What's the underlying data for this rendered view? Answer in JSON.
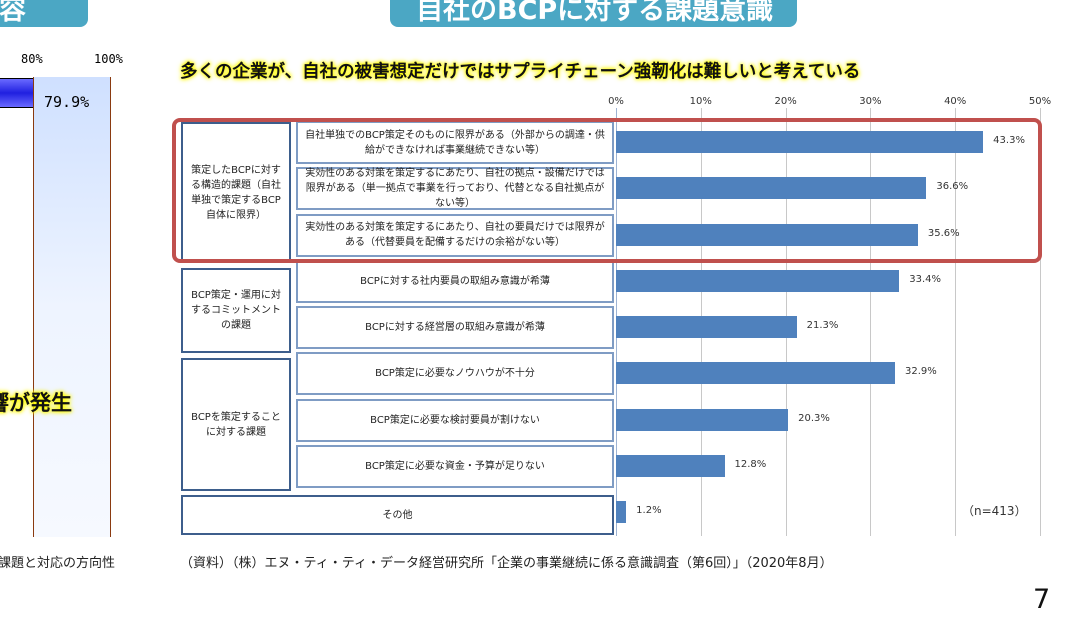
{
  "left_panel": {
    "header_fragment": "内容",
    "axis_ticks": [
      "80%",
      "100%"
    ],
    "value_label": "79.9%",
    "value": 79.9,
    "highlight_fragment": "響が発生",
    "footer_fragment": "課題と対応の方向性"
  },
  "header": {
    "title": "自社のBCPに対する課題意識"
  },
  "headline": "多くの企業が、自社の被害想定だけではサプライチェーン強靭化は難しいと考えている",
  "groups": [
    {
      "label": "策定したBCPに対する構造的課題（自社単独で策定するBCP自体に限界）"
    },
    {
      "label": "BCP策定・運用に対するコミットメントの課題"
    },
    {
      "label": "BCPを策定することに対する課題"
    }
  ],
  "chart_data": {
    "type": "bar",
    "orientation": "horizontal",
    "categories": [
      "自社単独でのBCP策定そのものに限界がある（外部からの調達・供給ができなければ事業継続できない等）",
      "実効性のある対策を策定するにあたり、自社の拠点・設備だけでは限界がある（単一拠点で事業を行っており、代替となる自社拠点がない等）",
      "実効性のある対策を策定するにあたり、自社の要員だけでは限界がある（代替要員を配備するだけの余裕がない等）",
      "BCPに対する社内要員の取組み意識が希薄",
      "BCPに対する経営層の取組み意識が希薄",
      "BCP策定に必要なノウハウが不十分",
      "BCP策定に必要な検討要員が割けない",
      "BCP策定に必要な資金・予算が足りない",
      "その他"
    ],
    "values": [
      43.3,
      36.6,
      35.6,
      33.4,
      21.3,
      32.9,
      20.3,
      12.8,
      1.2
    ],
    "data_labels": [
      "43.3%",
      "36.6%",
      "35.6%",
      "33.4%",
      "21.3%",
      "32.9%",
      "20.3%",
      "12.8%",
      "1.2%"
    ],
    "xlim": [
      0,
      50
    ],
    "x_ticks": [
      "0%",
      "10%",
      "20%",
      "30%",
      "40%",
      "50%"
    ],
    "grid": true,
    "bar_color": "#4f81bd",
    "highlight_color": "#c0504d",
    "annotation": "（n=413）"
  },
  "source": "（資料）（株）エヌ・ティ・ティ・データ経営研究所「企業の事業継続に係る意識調査（第6回）」（2020年8月）",
  "page_number": "7"
}
